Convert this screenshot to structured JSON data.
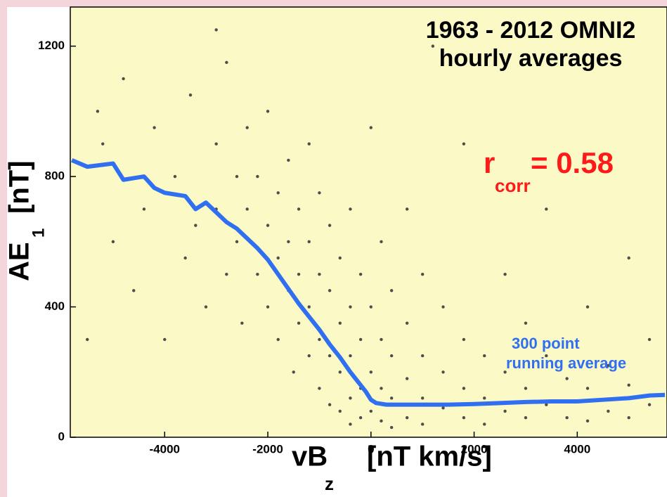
{
  "chart_data": {
    "type": "scatter",
    "title": "1963 - 2012 OMNI2",
    "subtitle": "hourly averages",
    "x_label": {
      "text": "vB",
      "subscript": "z",
      "unit": "[nT km/s]"
    },
    "y_label": {
      "text": "AE",
      "subscript": "1",
      "unit": "[nT]"
    },
    "annotation": {
      "symbol": "r",
      "subscript": "corr",
      "text": "= 0.58",
      "color": "#ff1a1a"
    },
    "xlim": [
      -5830,
      5740
    ],
    "ylim": [
      0,
      1320
    ],
    "xticks": [
      -4000,
      -2000,
      0,
      2000,
      4000
    ],
    "yticks": [
      0,
      400,
      800,
      1200
    ],
    "background": "#fbfac6",
    "series": [
      {
        "type": "scatter",
        "color": "#4d4d4d",
        "x": [
          -5500,
          -5200,
          -5000,
          -4800,
          -4600,
          -4400,
          -4200,
          -4000,
          -3800,
          -3600,
          -3500,
          -3400,
          -3200,
          -3000,
          -3000,
          -2800,
          -2800,
          -2600,
          -2600,
          -2500,
          -2400,
          -2400,
          -2200,
          -2200,
          -2000,
          -2000,
          -2000,
          -1800,
          -1800,
          -1800,
          -1600,
          -1600,
          -1600,
          -1500,
          -1400,
          -1400,
          -1400,
          -1200,
          -1200,
          -1200,
          -1200,
          -1000,
          -1000,
          -1000,
          -1000,
          -800,
          -800,
          -800,
          -800,
          -600,
          -600,
          -600,
          -600,
          -400,
          -400,
          -400,
          -400,
          -400,
          -200,
          -200,
          -200,
          -200,
          0,
          0,
          0,
          0,
          200,
          200,
          200,
          200,
          400,
          400,
          400,
          400,
          700,
          700,
          700,
          700,
          1000,
          1000,
          1000,
          1000,
          1400,
          1400,
          1400,
          1800,
          1800,
          1800,
          1800,
          2200,
          2200,
          2200,
          2600,
          2600,
          2600,
          3000,
          3000,
          3000,
          3400,
          3400,
          3400,
          3800,
          3800,
          4200,
          4200,
          4200,
          4600,
          4600,
          5000,
          5000,
          5000,
          5400,
          5400,
          -3000,
          1200,
          -5300
        ],
        "values": [
          300,
          900,
          600,
          1100,
          450,
          700,
          950,
          300,
          800,
          550,
          1050,
          650,
          400,
          900,
          700,
          500,
          1150,
          800,
          600,
          350,
          950,
          700,
          500,
          800,
          650,
          400,
          1000,
          750,
          550,
          300,
          850,
          600,
          450,
          200,
          700,
          500,
          350,
          900,
          600,
          400,
          250,
          750,
          500,
          300,
          150,
          650,
          450,
          250,
          100,
          550,
          350,
          200,
          80,
          700,
          400,
          250,
          120,
          40,
          500,
          300,
          150,
          60,
          950,
          400,
          200,
          80,
          600,
          300,
          150,
          50,
          450,
          250,
          120,
          30,
          700,
          350,
          180,
          60,
          500,
          250,
          120,
          40,
          400,
          200,
          90,
          900,
          300,
          150,
          60,
          250,
          120,
          40,
          500,
          200,
          80,
          350,
          150,
          60,
          700,
          250,
          100,
          180,
          60,
          400,
          150,
          50,
          220,
          80,
          550,
          160,
          60,
          300,
          100,
          1250,
          1200,
          1000
        ]
      },
      {
        "type": "line",
        "color": "#2f6ff0",
        "label": [
          "300 point",
          "running average"
        ],
        "x": [
          -5800,
          -5500,
          -5000,
          -4800,
          -4400,
          -4200,
          -4000,
          -3600,
          -3400,
          -3200,
          -3000,
          -2800,
          -2600,
          -2400,
          -2200,
          -2000,
          -1800,
          -1600,
          -1400,
          -1200,
          -1000,
          -800,
          -600,
          -400,
          -200,
          -100,
          0,
          100,
          300,
          600,
          1000,
          1500,
          2000,
          2500,
          3000,
          3500,
          4000,
          4500,
          5000,
          5400,
          5700
        ],
        "values": [
          850,
          830,
          840,
          790,
          800,
          765,
          750,
          740,
          700,
          720,
          690,
          660,
          640,
          610,
          580,
          545,
          500,
          455,
          410,
          370,
          330,
          285,
          245,
          200,
          160,
          140,
          115,
          105,
          100,
          100,
          100,
          100,
          102,
          105,
          108,
          110,
          110,
          115,
          120,
          128,
          130
        ]
      }
    ]
  }
}
